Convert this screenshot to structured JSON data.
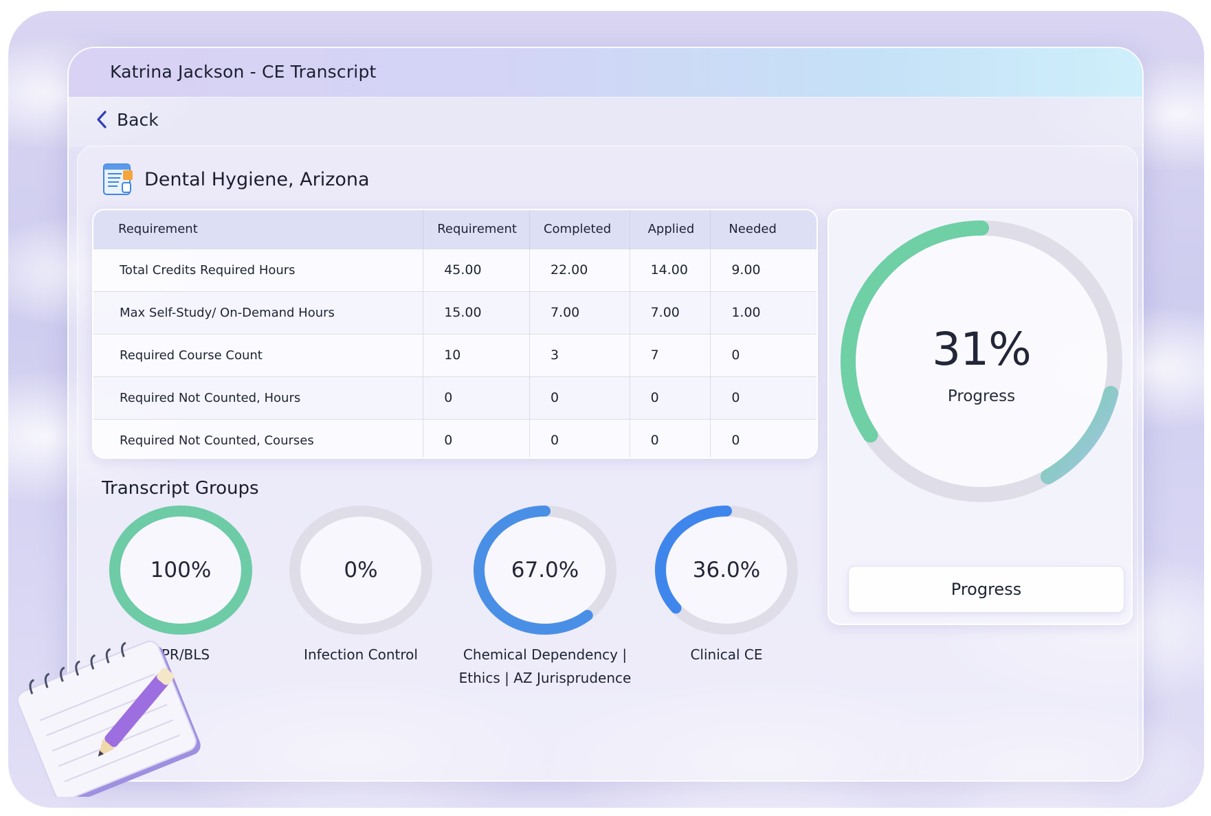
{
  "window": {
    "title": "Katrina Jackson - CE Transcript"
  },
  "nav": {
    "back_label": "Back"
  },
  "section": {
    "title": "Dental Hygiene, Arizona",
    "icon": "document-icon"
  },
  "table": {
    "headers": [
      "Requirement",
      "Requirement",
      "Completed",
      "Applied",
      "Needed"
    ],
    "rows": [
      [
        "Total Credits Required Hours",
        "45.00",
        "22.00",
        "14.00",
        "9.00"
      ],
      [
        "Max Self-Study/ On-Demand Hours",
        "15.00",
        "7.00",
        "7.00",
        "1.00"
      ],
      [
        "Required Course Count",
        "10",
        "3",
        "7",
        "0"
      ],
      [
        "Required Not Counted, Hours",
        "0",
        "0",
        "0",
        "0"
      ],
      [
        "Required Not Counted, Courses",
        "0",
        "0",
        "0",
        "0"
      ]
    ]
  },
  "overall": {
    "percent_label": "31%",
    "label": "Progress",
    "button_label": "Progress",
    "ring_fill_fraction": 0.31,
    "colors": {
      "start": "#6fcfa5",
      "end": "#a9c4ea",
      "track": "#dedde8"
    }
  },
  "groups": {
    "title": "Transcript Groups",
    "items": [
      {
        "percent_label": "100%",
        "fraction": 1.0,
        "label_line1": "CPR/BLS",
        "label_line2": "",
        "color": "#6dcba6"
      },
      {
        "percent_label": "0%",
        "fraction": 0.0,
        "label_line1": "Infection Control",
        "label_line2": "",
        "color": "#6d9de8"
      },
      {
        "percent_label": "67.0%",
        "fraction": 0.67,
        "label_line1": "Chemical Dependency |",
        "label_line2": "Ethics | AZ Jurisprudence",
        "color": "#4a8fe6"
      },
      {
        "percent_label": "36.0%",
        "fraction": 0.36,
        "label_line1": "Clinical CE",
        "label_line2": "",
        "color": "#3f86ec"
      }
    ]
  }
}
